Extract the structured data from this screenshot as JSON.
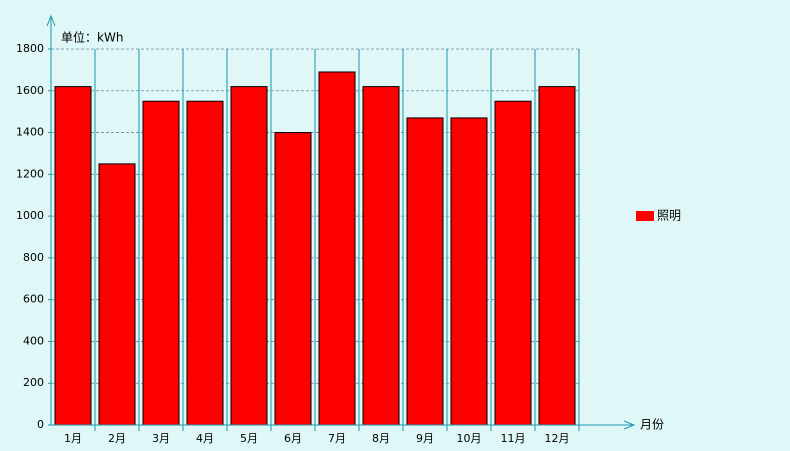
{
  "chart_data": {
    "type": "bar",
    "y_label": "单位：kWh",
    "x_label": "月份",
    "categories": [
      "1月",
      "2月",
      "3月",
      "4月",
      "5月",
      "6月",
      "7月",
      "8月",
      "9月",
      "10月",
      "11月",
      "12月"
    ],
    "series": [
      {
        "name": "照明",
        "color": "#ff0000",
        "values": [
          1620,
          1250,
          1550,
          1550,
          1620,
          1400,
          1690,
          1620,
          1470,
          1470,
          1550,
          1620
        ]
      }
    ],
    "ylim": [
      0,
      1800
    ],
    "yticks": [
      0,
      200,
      400,
      600,
      800,
      1000,
      1200,
      1400,
      1600,
      1800
    ],
    "grid": true,
    "legend": "right"
  }
}
